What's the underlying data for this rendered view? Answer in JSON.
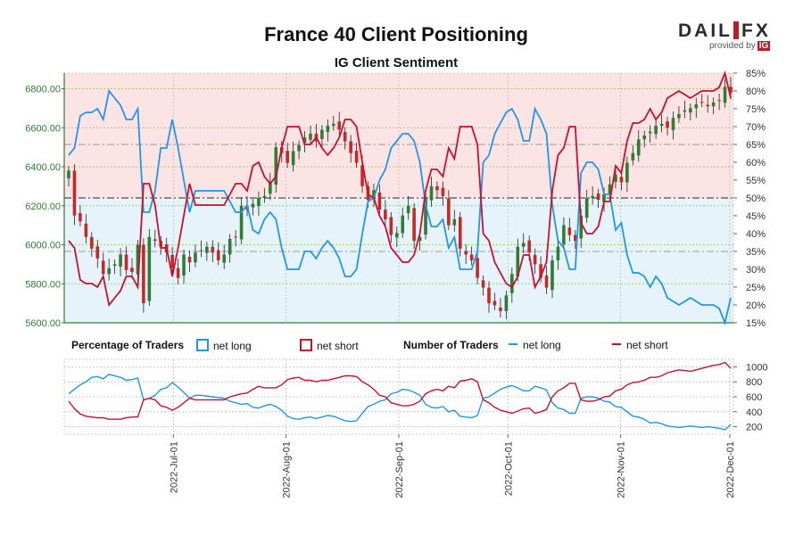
{
  "header": {
    "title": "France 40 Client Positioning",
    "subtitle": "IG Client Sentiment"
  },
  "logo": {
    "word_left": "DAIL",
    "word_right": "FX",
    "provided_by": "provided by",
    "ig": "IG"
  },
  "legend": {
    "pct_title": "Percentage of Traders",
    "pct_long": "net long",
    "pct_short": "net short",
    "num_title": "Number of Traders",
    "num_long": "net long",
    "num_short": "net short"
  },
  "colors": {
    "long": "#2196e8",
    "short": "#c8102e",
    "up_candle": "#2e7d32",
    "down_candle": "#c62828",
    "long_zone": "#e6f3fb",
    "short_zone": "#fce4e4",
    "price_axis": "#2e7d32"
  },
  "chart_data": {
    "type": "line",
    "x_labels": [
      "2022-Jul-01",
      "2022-Aug-01",
      "2022-Sep-01",
      "2022-Oct-01",
      "2022-Nov-01",
      "2022-Dec-01"
    ],
    "x_range": [
      "2022-06-01",
      "2022-12-02"
    ],
    "price_axis": {
      "ticks": [
        "5600.00",
        "5800.00",
        "6000.00",
        "6200.00",
        "6400.00",
        "6600.00",
        "6800.00"
      ],
      "ylim": [
        5600,
        6880
      ]
    },
    "pct_axis": {
      "ticks": [
        "15%",
        "20%",
        "25%",
        "30%",
        "35%",
        "40%",
        "45%",
        "50%",
        "55%",
        "60%",
        "65%",
        "70%",
        "75%",
        "80%",
        "85%"
      ],
      "ylim": [
        15,
        85
      ]
    },
    "count_axis": {
      "ticks": [
        "200",
        "400",
        "600",
        "800",
        "1000"
      ],
      "ylim": [
        100,
        1100
      ]
    },
    "price_closes": [
      6380,
      6150,
      6120,
      6040,
      5980,
      5930,
      5850,
      5880,
      5900,
      5950,
      5870,
      5860,
      6000,
      5700,
      6040,
      6020,
      5990,
      5960,
      5880,
      5830,
      5950,
      5910,
      5960,
      5970,
      5990,
      5960,
      5920,
      5950,
      6030,
      6040,
      6200,
      6180,
      6210,
      6240,
      6250,
      6320,
      6500,
      6470,
      6420,
      6480,
      6510,
      6550,
      6570,
      6530,
      6590,
      6610,
      6620,
      6590,
      6530,
      6470,
      6420,
      6300,
      6230,
      6280,
      6180,
      6130,
      6050,
      6060,
      6150,
      6200,
      6020,
      6040,
      6240,
      6300,
      6280,
      6250,
      6100,
      6130,
      5980,
      5950,
      5920,
      5830,
      5780,
      5700,
      5690,
      5660,
      5740,
      5850,
      5990,
      6010,
      5960,
      5900,
      5830,
      5780,
      5920,
      5990,
      6100,
      6050,
      6020,
      6150,
      6240,
      6250,
      6230,
      6260,
      6310,
      6360,
      6320,
      6420,
      6470,
      6540,
      6560,
      6580,
      6610,
      6620,
      6600,
      6650,
      6670,
      6690,
      6700,
      6720,
      6730,
      6710,
      6730,
      6740,
      6810,
      6780
    ],
    "pct_long": [
      62,
      64,
      73,
      74,
      74,
      75,
      72,
      80,
      78,
      76,
      72,
      72,
      75,
      46,
      46,
      52,
      64,
      64,
      72,
      64,
      55,
      46,
      52,
      52,
      52,
      52,
      52,
      52,
      49,
      46,
      46,
      48,
      41,
      40,
      44,
      46,
      44,
      36,
      30,
      30,
      30,
      35,
      35,
      33,
      36,
      38,
      36,
      33,
      28,
      28,
      30,
      40,
      49,
      50,
      55,
      58,
      64,
      66,
      68,
      68,
      66,
      60,
      48,
      42,
      42,
      44,
      36,
      39,
      30,
      30,
      30,
      35,
      60,
      62,
      68,
      71,
      74,
      75,
      72,
      66,
      66,
      75,
      72,
      68,
      48,
      38,
      36,
      30,
      30,
      57,
      60,
      60,
      58,
      51,
      51,
      41,
      43,
      34,
      29,
      29,
      28,
      25,
      28,
      26,
      22,
      21,
      20,
      21,
      22,
      21,
      20,
      20,
      20,
      19,
      15,
      22
    ],
    "pct_short": [
      38,
      36,
      27,
      26,
      26,
      25,
      28,
      20,
      22,
      24,
      28,
      28,
      25,
      54,
      54,
      48,
      36,
      36,
      28,
      36,
      45,
      54,
      48,
      48,
      48,
      48,
      48,
      48,
      51,
      54,
      54,
      52,
      59,
      60,
      56,
      54,
      56,
      64,
      70,
      70,
      70,
      65,
      65,
      67,
      64,
      62,
      64,
      67,
      72,
      72,
      70,
      60,
      51,
      50,
      45,
      42,
      36,
      34,
      32,
      32,
      34,
      40,
      52,
      58,
      58,
      56,
      64,
      61,
      70,
      70,
      70,
      65,
      40,
      38,
      32,
      29,
      26,
      25,
      28,
      34,
      34,
      25,
      28,
      32,
      52,
      62,
      64,
      70,
      70,
      43,
      40,
      40,
      42,
      49,
      49,
      59,
      57,
      66,
      71,
      71,
      72,
      75,
      72,
      74,
      78,
      79,
      80,
      79,
      78,
      79,
      80,
      80,
      80,
      81,
      85,
      78
    ],
    "num_long": [
      640,
      700,
      760,
      800,
      860,
      870,
      840,
      900,
      880,
      860,
      820,
      830,
      850,
      560,
      580,
      620,
      700,
      720,
      790,
      730,
      660,
      580,
      620,
      620,
      610,
      600,
      590,
      580,
      540,
      520,
      500,
      510,
      460,
      450,
      480,
      500,
      470,
      420,
      340,
      310,
      300,
      320,
      330,
      310,
      330,
      350,
      340,
      310,
      280,
      270,
      280,
      380,
      470,
      500,
      540,
      560,
      640,
      660,
      700,
      690,
      660,
      620,
      500,
      460,
      450,
      470,
      400,
      420,
      340,
      330,
      320,
      350,
      580,
      600,
      650,
      700,
      730,
      750,
      720,
      680,
      680,
      740,
      720,
      690,
      520,
      450,
      430,
      380,
      380,
      580,
      600,
      600,
      580,
      540,
      530,
      470,
      460,
      400,
      340,
      330,
      300,
      250,
      260,
      240,
      210,
      200,
      190,
      200,
      210,
      200,
      190,
      200,
      190,
      180,
      160,
      230
    ],
    "num_short": [
      540,
      440,
      370,
      340,
      330,
      320,
      320,
      300,
      300,
      300,
      320,
      330,
      330,
      560,
      580,
      560,
      480,
      460,
      420,
      460,
      520,
      580,
      560,
      560,
      560,
      560,
      560,
      560,
      600,
      620,
      640,
      650,
      700,
      740,
      720,
      720,
      720,
      760,
      830,
      850,
      860,
      820,
      820,
      800,
      820,
      820,
      840,
      860,
      880,
      880,
      870,
      800,
      760,
      700,
      620,
      600,
      520,
      500,
      480,
      480,
      500,
      540,
      640,
      680,
      700,
      680,
      740,
      720,
      810,
      820,
      840,
      800,
      560,
      520,
      460,
      420,
      400,
      380,
      410,
      440,
      450,
      380,
      400,
      430,
      600,
      680,
      720,
      780,
      780,
      560,
      540,
      540,
      560,
      600,
      610,
      680,
      700,
      760,
      790,
      800,
      820,
      860,
      860,
      880,
      920,
      940,
      960,
      950,
      940,
      960,
      980,
      1000,
      1020,
      1030,
      1060,
      980
    ]
  }
}
